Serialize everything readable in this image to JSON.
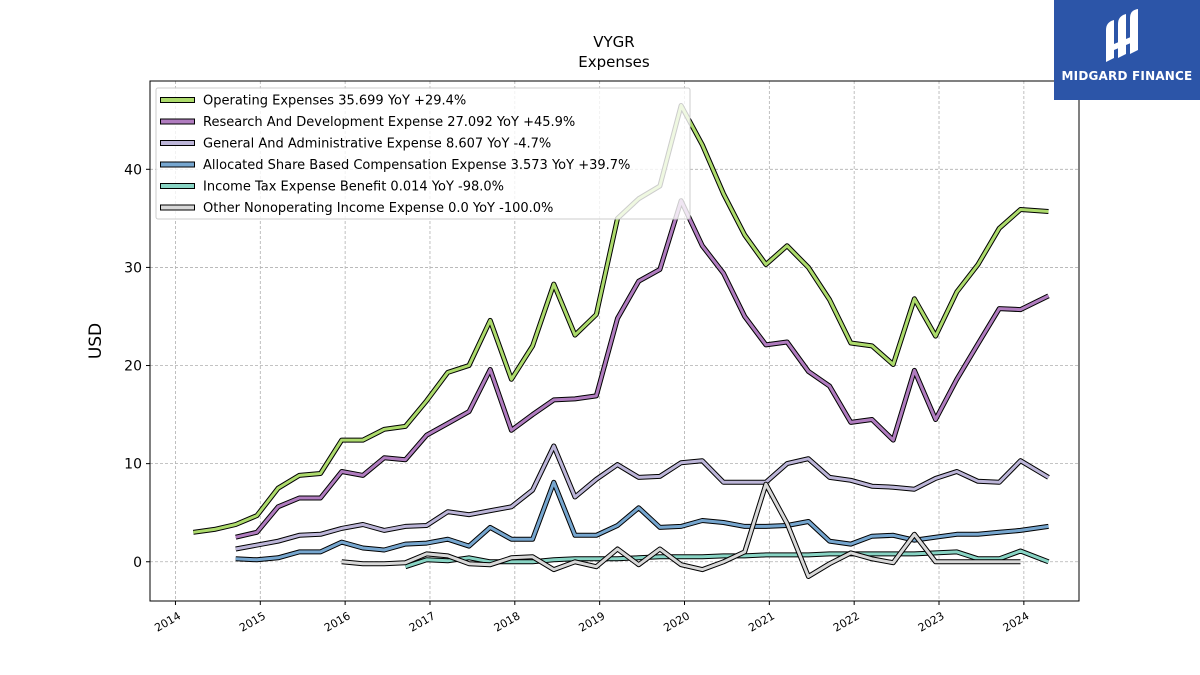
{
  "chart_data": {
    "type": "line",
    "title": "VYGR",
    "subtitle": "Expenses",
    "ylabel": "USD",
    "xlabel": "",
    "xlim": [
      2013.7,
      2024.65
    ],
    "ylim": [
      -4,
      49
    ],
    "yticks": [
      0,
      10,
      20,
      30,
      40
    ],
    "xticks": [
      2014,
      2015,
      2016,
      2017,
      2018,
      2019,
      2020,
      2021,
      2022,
      2023,
      2024
    ],
    "grid": true,
    "legend_position": "top-left",
    "series": [
      {
        "name": "Operating Expenses",
        "legend": "Operating Expenses  35.699 YoY +29.4%",
        "color": "#addb6c",
        "x": [
          2014.21,
          2014.46,
          2014.71,
          2014.96,
          2015.21,
          2015.46,
          2015.71,
          2015.96,
          2016.21,
          2016.46,
          2016.71,
          2016.96,
          2017.21,
          2017.46,
          2017.71,
          2017.96,
          2018.21,
          2018.46,
          2018.71,
          2018.96,
          2019.21,
          2019.46,
          2019.71,
          2019.96,
          2020.21,
          2020.46,
          2020.71,
          2020.96,
          2021.21,
          2021.46,
          2021.71,
          2021.96,
          2022.21,
          2022.46,
          2022.71,
          2022.96,
          2023.21,
          2023.46,
          2023.71,
          2023.96,
          2024.29
        ],
        "y": [
          3.0,
          3.3,
          3.8,
          4.7,
          7.5,
          8.8,
          9.0,
          12.4,
          12.4,
          13.5,
          13.8,
          16.4,
          19.3,
          20.0,
          24.6,
          18.6,
          22.0,
          28.3,
          23.1,
          25.2,
          35.0,
          37.0,
          38.3,
          46.5,
          42.5,
          37.5,
          33.3,
          30.3,
          32.2,
          30.0,
          26.7,
          22.3,
          22.0,
          20.1,
          26.8,
          23.0,
          27.5,
          30.3,
          34.0,
          35.9,
          35.7
        ]
      },
      {
        "name": "Research And Development Expense",
        "legend": "Research And Development Expense  27.092 YoY +45.9%",
        "color": "#b07cbf",
        "x": [
          2014.71,
          2014.96,
          2015.21,
          2015.46,
          2015.71,
          2015.96,
          2016.21,
          2016.46,
          2016.71,
          2016.96,
          2017.21,
          2017.46,
          2017.71,
          2017.96,
          2018.21,
          2018.46,
          2018.71,
          2018.96,
          2019.21,
          2019.46,
          2019.71,
          2019.96,
          2020.21,
          2020.46,
          2020.71,
          2020.96,
          2021.21,
          2021.46,
          2021.71,
          2021.96,
          2022.21,
          2022.46,
          2022.71,
          2022.96,
          2023.21,
          2023.46,
          2023.71,
          2023.96,
          2024.29
        ],
        "y": [
          2.5,
          3.0,
          5.6,
          6.5,
          6.5,
          9.2,
          8.8,
          10.6,
          10.4,
          12.9,
          14.1,
          15.3,
          19.6,
          13.4,
          15.0,
          16.5,
          16.6,
          16.9,
          24.8,
          28.6,
          29.8,
          36.8,
          32.2,
          29.4,
          25.0,
          22.1,
          22.4,
          19.4,
          17.9,
          14.2,
          14.5,
          12.4,
          19.5,
          14.5,
          18.6,
          22.2,
          25.8,
          25.7,
          27.1
        ]
      },
      {
        "name": "General And Administrative Expense",
        "legend": "General And Administrative Expense  8.607 YoY -4.7%",
        "color": "#bcb5d8",
        "x": [
          2014.71,
          2014.96,
          2015.21,
          2015.46,
          2015.71,
          2015.96,
          2016.21,
          2016.46,
          2016.71,
          2016.96,
          2017.21,
          2017.46,
          2017.71,
          2017.96,
          2018.21,
          2018.46,
          2018.71,
          2018.96,
          2019.21,
          2019.46,
          2019.71,
          2019.96,
          2020.21,
          2020.46,
          2020.71,
          2020.96,
          2021.21,
          2021.46,
          2021.71,
          2021.96,
          2022.21,
          2022.46,
          2022.71,
          2022.96,
          2023.21,
          2023.46,
          2023.71,
          2023.96,
          2024.29
        ],
        "y": [
          1.3,
          1.7,
          2.1,
          2.7,
          2.8,
          3.4,
          3.8,
          3.2,
          3.6,
          3.7,
          5.1,
          4.8,
          5.2,
          5.6,
          7.3,
          11.8,
          6.6,
          8.4,
          9.9,
          8.6,
          8.7,
          10.1,
          10.3,
          8.1,
          8.1,
          8.1,
          10.0,
          10.5,
          8.6,
          8.3,
          7.7,
          7.6,
          7.4,
          8.5,
          9.2,
          8.2,
          8.1,
          10.3,
          8.6
        ]
      },
      {
        "name": "Allocated Share Based Compensation Expense",
        "legend": "Allocated Share Based Compensation Expense  3.573 YoY +39.7%",
        "color": "#76a6cf",
        "x": [
          2014.71,
          2014.96,
          2015.21,
          2015.46,
          2015.71,
          2015.96,
          2016.21,
          2016.46,
          2016.71,
          2016.96,
          2017.21,
          2017.46,
          2017.71,
          2017.96,
          2018.21,
          2018.46,
          2018.71,
          2018.96,
          2019.21,
          2019.46,
          2019.71,
          2019.96,
          2020.21,
          2020.46,
          2020.71,
          2020.96,
          2021.21,
          2021.46,
          2021.71,
          2021.96,
          2022.21,
          2022.46,
          2022.71,
          2022.96,
          2023.21,
          2023.46,
          2023.71,
          2023.96,
          2024.29
        ],
        "y": [
          0.3,
          0.2,
          0.4,
          1.0,
          1.0,
          2.0,
          1.4,
          1.2,
          1.8,
          1.9,
          2.3,
          1.6,
          3.5,
          2.3,
          2.3,
          8.1,
          2.7,
          2.7,
          3.7,
          5.5,
          3.5,
          3.6,
          4.2,
          4.0,
          3.6,
          3.6,
          3.7,
          4.1,
          2.1,
          1.8,
          2.6,
          2.7,
          2.2,
          2.5,
          2.8,
          2.8,
          3.0,
          3.2,
          3.6
        ]
      },
      {
        "name": "Income Tax Expense Benefit",
        "legend": "Income Tax Expense Benefit  0.014 YoY -98.0%",
        "color": "#88d4c4",
        "x": [
          2016.71,
          2016.96,
          2017.21,
          2017.46,
          2017.71,
          2017.96,
          2018.21,
          2018.46,
          2018.71,
          2018.96,
          2019.21,
          2019.46,
          2019.71,
          2019.96,
          2020.21,
          2020.46,
          2020.71,
          2020.96,
          2021.21,
          2021.46,
          2021.71,
          2021.96,
          2022.21,
          2022.46,
          2022.71,
          2022.96,
          2023.21,
          2023.46,
          2023.71,
          2023.96,
          2024.29
        ],
        "y": [
          -0.5,
          0.2,
          0.1,
          0.4,
          0.0,
          0.0,
          0.0,
          0.2,
          0.3,
          0.3,
          0.3,
          0.4,
          0.5,
          0.5,
          0.5,
          0.6,
          0.6,
          0.7,
          0.7,
          0.7,
          0.8,
          0.8,
          0.8,
          0.8,
          0.8,
          0.9,
          1.0,
          0.3,
          0.3,
          1.1,
          0.0
        ]
      },
      {
        "name": "Other Nonoperating Income Expense",
        "legend": "Other Nonoperating Income Expense  0.0 YoY -100.0%",
        "color": "#d8d8d8",
        "x": [
          2015.96,
          2016.21,
          2016.46,
          2016.71,
          2016.96,
          2017.21,
          2017.46,
          2017.71,
          2017.96,
          2018.21,
          2018.46,
          2018.71,
          2018.96,
          2019.21,
          2019.46,
          2019.71,
          2019.96,
          2020.21,
          2020.46,
          2020.71,
          2020.96,
          2021.21,
          2021.46,
          2021.71,
          2021.96,
          2022.21,
          2022.46,
          2022.71,
          2022.96,
          2023.21,
          2023.46,
          2023.71,
          2023.96
        ],
        "y": [
          0.0,
          -0.2,
          -0.2,
          -0.1,
          0.8,
          0.6,
          -0.2,
          -0.3,
          0.4,
          0.5,
          -0.8,
          0.0,
          -0.5,
          1.3,
          -0.3,
          1.3,
          -0.3,
          -0.8,
          0.0,
          1.0,
          7.9,
          3.9,
          -1.5,
          -0.2,
          0.9,
          0.3,
          -0.1,
          2.8,
          0.0,
          0.0,
          0.0,
          0.0,
          0.0
        ]
      }
    ]
  },
  "logo": {
    "name": "MIDGARD FINANCE",
    "background": "#2c55a8"
  }
}
